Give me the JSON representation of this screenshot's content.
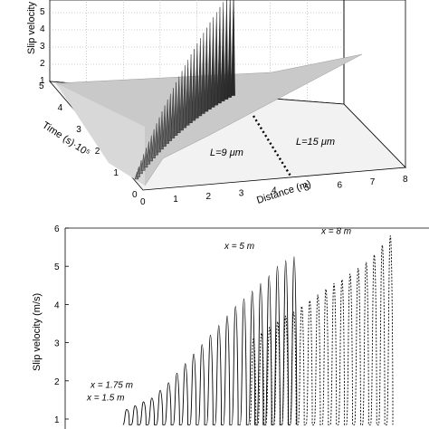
{
  "chart_data": [
    {
      "type": "surface",
      "zlabel": "Slip velocity",
      "ylabel": "Time (s)·10⁵",
      "xlabel": "Distance (m)",
      "x_ticks": [
        "0",
        "1",
        "2",
        "3",
        "4",
        "5",
        "6",
        "7",
        "8"
      ],
      "y_ticks": [
        "0",
        "1",
        "2",
        "3",
        "4",
        "5"
      ],
      "z_ticks": [
        "1",
        "2",
        "3",
        "4",
        "5",
        "6"
      ],
      "annotations": {
        "left_region": "L=9 μm",
        "right_region": "L=15 μm"
      },
      "boundary_distance_m": 5,
      "pulse_distances_m": [
        0.1,
        0.2,
        0.35,
        0.5,
        0.65,
        0.8,
        0.95,
        1.1,
        1.25,
        1.4,
        1.55,
        1.7,
        1.85,
        2.0,
        2.15,
        2.3,
        2.45,
        2.6,
        2.75,
        2.9,
        3.05,
        3.2,
        3.35,
        3.5,
        3.65,
        3.8,
        3.95,
        4.1,
        4.25,
        4.4,
        4.55,
        4.7,
        4.85,
        5.0
      ],
      "grid": true
    },
    {
      "type": "line",
      "ylabel": "Slip velocity (m/s)",
      "ylim": [
        1,
        6
      ],
      "y_ticks": [
        "1",
        "2",
        "3",
        "4",
        "5",
        "6"
      ],
      "series": [
        {
          "style": "solid",
          "peaks": [
            1.25,
            1.35,
            1.45,
            1.55,
            1.75,
            1.95,
            2.2,
            2.45,
            2.7,
            2.95,
            3.2,
            3.45,
            3.7,
            3.95,
            4.15,
            4.35,
            4.55,
            4.75,
            5.0,
            5.15,
            5.25
          ]
        },
        {
          "style": "dotted",
          "peaks": [
            3.1,
            3.25,
            3.4,
            3.55,
            3.7,
            3.8,
            3.95,
            4.1,
            4.25,
            4.4,
            4.55,
            4.65,
            4.8,
            4.95,
            5.1,
            5.3,
            5.55,
            5.8
          ]
        }
      ],
      "annotations": [
        {
          "label": "x = 1.5 m",
          "value": 1.5
        },
        {
          "label": "x = 1.75 m",
          "value": 1.75
        },
        {
          "label": "x = 5 m",
          "value": 5
        },
        {
          "label": "x = 8 m",
          "value": 8
        }
      ]
    }
  ]
}
